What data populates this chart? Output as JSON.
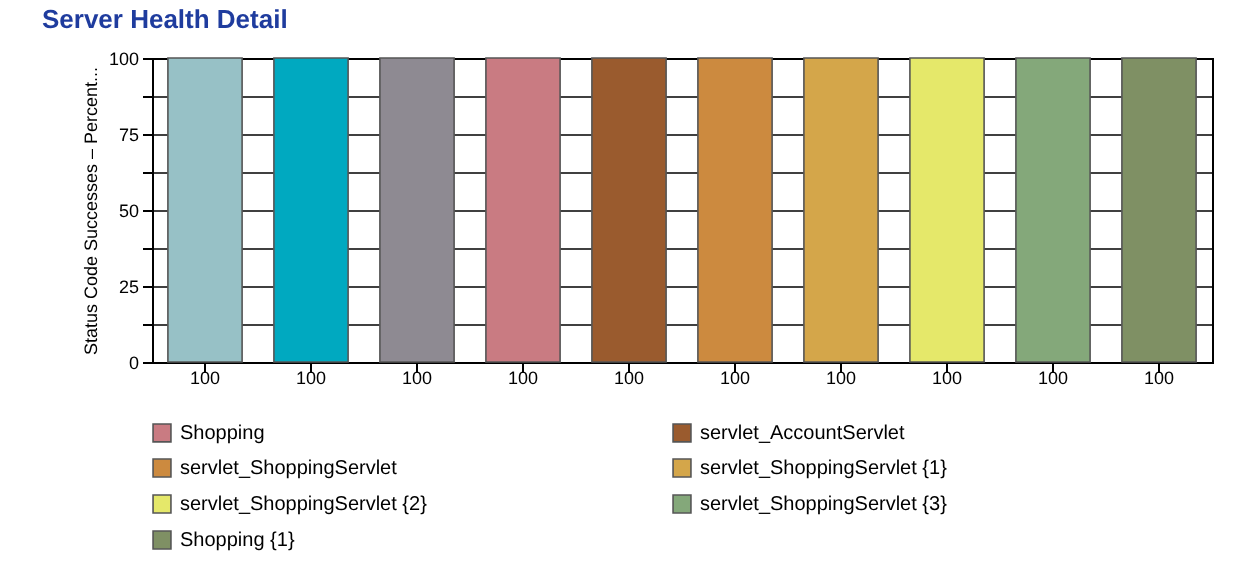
{
  "chart_data": {
    "type": "bar",
    "title": "Server Health Detail",
    "ylabel": "Status Code Successes – Percent...",
    "categories": [
      null,
      null,
      null,
      null,
      null,
      null,
      null,
      null,
      null,
      null
    ],
    "series": [
      {
        "color": "#97c1c6",
        "values": [
          100,
          null,
          null,
          null,
          null,
          null,
          null,
          null,
          null,
          null
        ]
      },
      {
        "color": "#00a9c0",
        "values": [
          null,
          100,
          null,
          null,
          null,
          null,
          null,
          null,
          null,
          null
        ]
      },
      {
        "color": "#8e8a92",
        "values": [
          null,
          null,
          100,
          null,
          null,
          null,
          null,
          null,
          null,
          null
        ]
      },
      {
        "name": "Shopping",
        "color": "#c97b82",
        "values": [
          null,
          null,
          null,
          100,
          null,
          null,
          null,
          null,
          null,
          null
        ]
      },
      {
        "name": "servlet_AccountServlet",
        "color": "#9a5b2e",
        "values": [
          null,
          null,
          null,
          null,
          100,
          null,
          null,
          null,
          null,
          null
        ]
      },
      {
        "name": "servlet_ShoppingServlet",
        "color": "#cc8a3f",
        "values": [
          null,
          null,
          null,
          null,
          null,
          100,
          null,
          null,
          null,
          null
        ]
      },
      {
        "name": "servlet_ShoppingServlet {1}",
        "color": "#d4a64a",
        "values": [
          null,
          null,
          null,
          null,
          null,
          null,
          100,
          null,
          null,
          null
        ]
      },
      {
        "name": "servlet_ShoppingServlet {2}",
        "color": "#e5e86a",
        "values": [
          null,
          null,
          null,
          null,
          null,
          null,
          null,
          100,
          null,
          null
        ]
      },
      {
        "name": "servlet_ShoppingServlet {3}",
        "color": "#84a87a",
        "values": [
          null,
          null,
          null,
          null,
          null,
          null,
          null,
          null,
          100,
          null
        ]
      },
      {
        "name": "Shopping {1}",
        "color": "#7f9064",
        "values": [
          null,
          null,
          null,
          null,
          null,
          null,
          null,
          null,
          null,
          100
        ]
      }
    ],
    "ylim": [
      0,
      100
    ],
    "yticks": [
      0,
      {
        "value": 12.5,
        "label": null
      },
      25,
      {
        "value": 37.5,
        "label": null
      },
      50,
      {
        "value": 62.5,
        "label": null
      },
      75,
      {
        "value": 87.5,
        "label": null
      },
      100
    ],
    "grid": true,
    "data_labels": true,
    "legend": "bottom"
  }
}
